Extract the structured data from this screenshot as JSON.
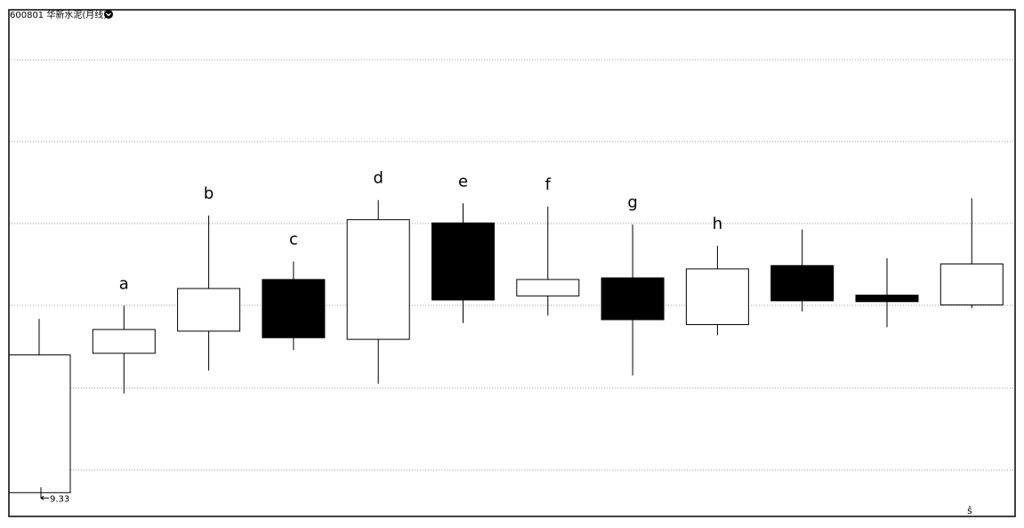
{
  "chart_data": {
    "type": "candlestick",
    "title": "600801 华新水泥(月线)",
    "categories": [
      null,
      "a",
      "b",
      "c",
      "d",
      "e",
      "f",
      "g",
      "h",
      null,
      null,
      null
    ],
    "open": [
      9.33,
      11.03,
      11.3,
      11.93,
      11.2,
      12.62,
      11.73,
      11.95,
      11.38,
      12.1,
      11.74,
      11.62
    ],
    "close": [
      11.01,
      11.32,
      11.82,
      11.22,
      12.66,
      11.68,
      11.93,
      11.44,
      12.06,
      11.67,
      11.66,
      12.12
    ],
    "high": [
      11.45,
      11.61,
      12.71,
      12.15,
      12.9,
      12.86,
      12.82,
      12.6,
      12.34,
      12.54,
      12.19,
      12.92
    ],
    "low": [
      9.33,
      10.54,
      10.82,
      11.07,
      10.66,
      11.4,
      11.49,
      10.76,
      11.25,
      11.54,
      11.35,
      11.58
    ],
    "low_marker": 9.33,
    "corner_mark": "ŝ",
    "ylim": [
      9.04,
      15.22
    ],
    "up_color": "#ffffff",
    "down_color": "#000000",
    "edge_color": "#000000"
  }
}
